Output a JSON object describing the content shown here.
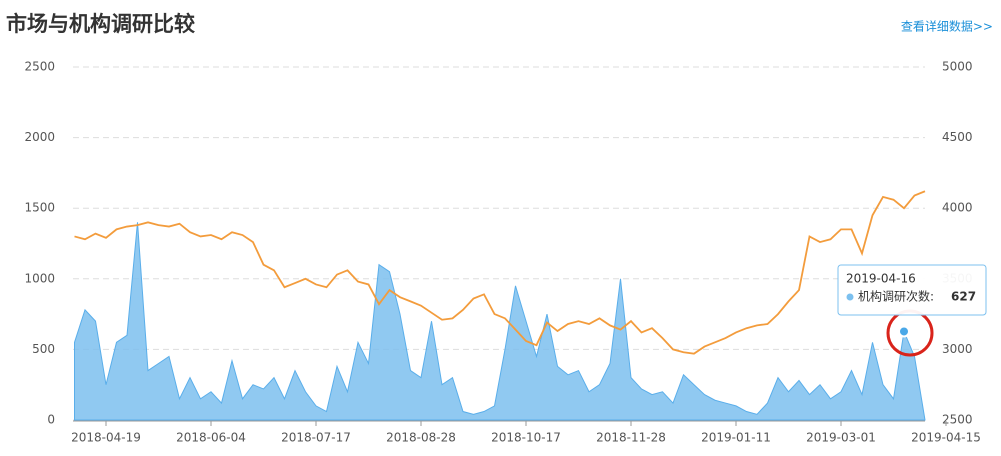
{
  "title": "市场与机构调研比较",
  "link": "查看详细数据>>",
  "chart_data": {
    "type": "area-line",
    "categories": [
      null,
      null,
      null,
      "2018-04-19",
      null,
      null,
      null,
      null,
      null,
      null,
      null,
      null,
      null,
      "2018-06-04",
      null,
      null,
      null,
      null,
      null,
      null,
      null,
      null,
      null,
      "2018-07-17",
      null,
      null,
      null,
      null,
      null,
      null,
      null,
      null,
      null,
      "2018-08-28",
      null,
      null,
      null,
      null,
      null,
      null,
      null,
      null,
      null,
      "2018-10-17",
      null,
      null,
      null,
      null,
      null,
      null,
      null,
      null,
      null,
      "2018-11-28",
      null,
      null,
      null,
      null,
      null,
      null,
      null,
      null,
      null,
      "2019-01-11",
      null,
      null,
      null,
      null,
      null,
      null,
      null,
      null,
      null,
      "2019-03-01",
      null,
      null,
      null,
      null,
      null,
      null,
      null,
      null,
      null,
      "2019-04-15"
    ],
    "series": [
      {
        "color": "#7cc0ef",
        "values": [
          550,
          780,
          700,
          250,
          550,
          600,
          1400,
          350,
          400,
          450,
          150,
          300,
          150,
          200,
          120,
          420,
          150,
          250,
          220,
          300,
          150,
          350,
          200,
          100,
          60,
          380,
          200,
          550,
          400,
          1100,
          1050,
          750,
          350,
          300,
          700,
          250,
          300,
          60,
          40,
          60,
          100,
          500,
          950,
          700,
          450,
          750,
          380,
          320,
          350,
          200,
          250,
          400,
          1000,
          300,
          220,
          180,
          200,
          120,
          320,
          250,
          180,
          140,
          120,
          100,
          60,
          40,
          120,
          300,
          200,
          280,
          180,
          250,
          150,
          200,
          350,
          180,
          550,
          250,
          150,
          627,
          450,
          0,
          null,
          null
        ]
      },
      {
        "color": "#f39c3c",
        "axis": "y2",
        "values": [
          3800,
          3780,
          3820,
          3790,
          3850,
          3870,
          3880,
          3900,
          3880,
          3870,
          3890,
          3830,
          3800,
          3810,
          3780,
          3830,
          3810,
          3760,
          3600,
          3560,
          3440,
          3470,
          3500,
          3460,
          3440,
          3530,
          3560,
          3480,
          3460,
          3320,
          3420,
          3370,
          3340,
          3310,
          3260,
          3210,
          3220,
          3280,
          3360,
          3390,
          3250,
          3220,
          3140,
          3060,
          3030,
          3190,
          3130,
          3180,
          3200,
          3180,
          3220,
          3170,
          3140,
          3200,
          3120,
          3150,
          3080,
          3000,
          2980,
          2970,
          3020,
          3050,
          3080,
          3120,
          3150,
          3170,
          3180,
          3250,
          3340,
          3420,
          3800,
          3760,
          3780,
          3850,
          3850,
          3680,
          3950,
          4080,
          4060,
          4000,
          4090,
          4120,
          null,
          null
        ]
      }
    ],
    "ylim": [
      0,
      2500
    ],
    "yticks": [
      0,
      500,
      1000,
      1500,
      2000,
      2500
    ],
    "y2lim": [
      2500,
      5000
    ],
    "y2ticks": [
      2500,
      3000,
      3500,
      4000,
      4500,
      5000
    ],
    "grid": true,
    "tooltip": {
      "date": "2019-04-16",
      "label": "机构调研次数:",
      "index": 79
    }
  }
}
